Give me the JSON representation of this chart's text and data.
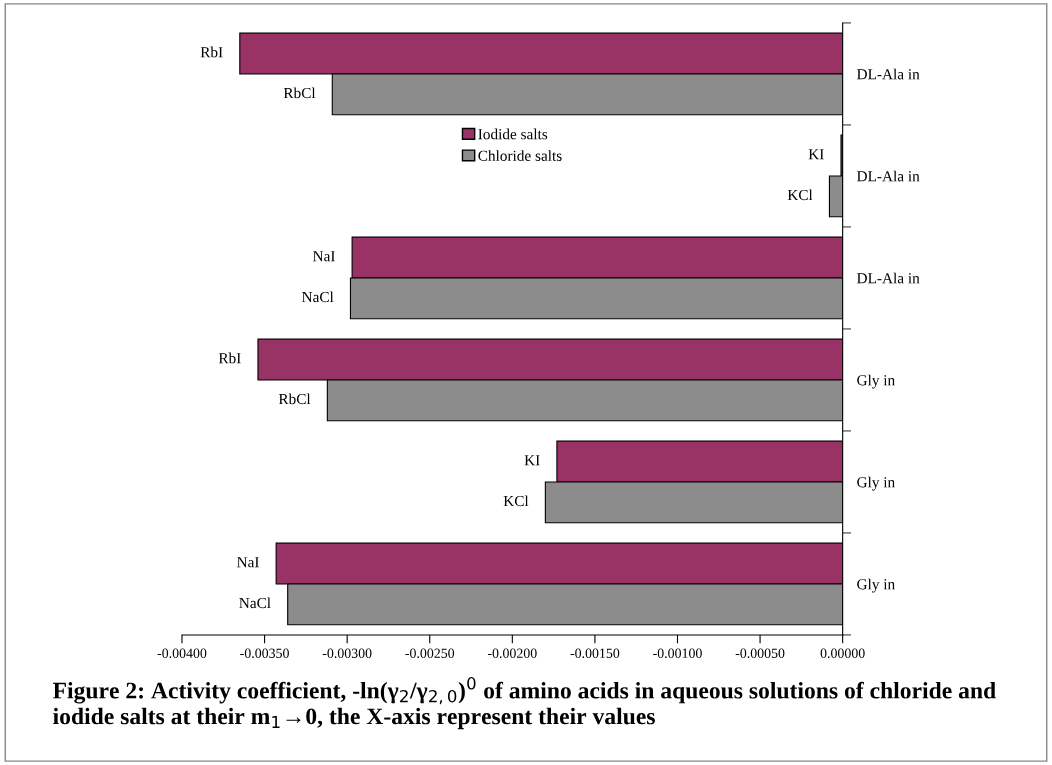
{
  "chart_data": {
    "type": "bar",
    "orientation": "horizontal",
    "title": "Figure 2: Activity coefficient, -ln(γ$_{2}$/γ$_{2,0}$)$^{0}$ of amino acids in aqueous solutions of chloride and iodide salts at their m$_{1}$→0, the X-axis represent their values",
    "categories": [
      "DL-Ala in",
      "DL-Ala in",
      "DL-Ala in",
      "Gly in",
      "Gly in",
      "Gly in"
    ],
    "series": [
      {
        "name": "Iodide salts",
        "color": "#993366",
        "values": [
          -0.00365,
          -1e-05,
          -0.00297,
          -0.00354,
          -0.00173,
          -0.00343
        ],
        "value_labels": [
          "RbI",
          "KI",
          "NaI",
          "RbI",
          "KI",
          "NaI"
        ]
      },
      {
        "name": "Chloride salts",
        "color": "#8c8c8c",
        "values": [
          -0.00309,
          -8e-05,
          -0.00298,
          -0.00312,
          -0.0018,
          -0.00336
        ],
        "value_labels": [
          "RbCl",
          "KCl",
          "NaCl",
          "RbCl",
          "KCl",
          "NaCl"
        ]
      }
    ],
    "xlim": [
      -0.004,
      0
    ],
    "xticks": [
      {
        "value": -0.004,
        "label": "-0.00400"
      },
      {
        "value": -0.0035,
        "label": "-0.00350"
      },
      {
        "value": -0.003,
        "label": "-0.00300"
      },
      {
        "value": -0.0025,
        "label": "-0.00250"
      },
      {
        "value": -0.002,
        "label": "-0.00200"
      },
      {
        "value": -0.0015,
        "label": "-0.00150"
      },
      {
        "value": -0.001,
        "label": "-0.00100"
      },
      {
        "value": -0.0005,
        "label": "-0.00050"
      },
      {
        "value": 0,
        "label": "0.00000"
      }
    ],
    "legend": "upper center",
    "grid": false
  }
}
